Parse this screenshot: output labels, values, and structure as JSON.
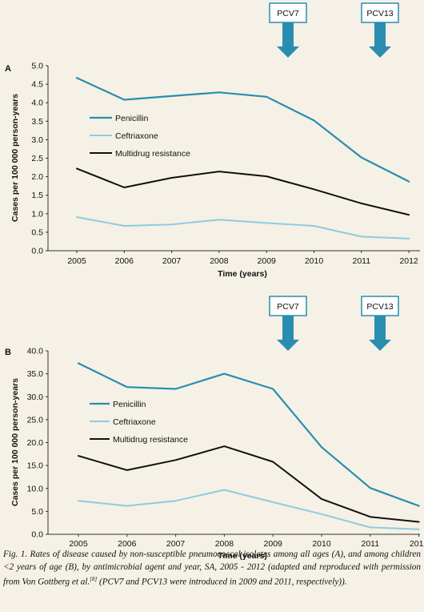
{
  "colors": {
    "penicillin": "#2a8db0",
    "ceftriaxone": "#90cbe0",
    "multidrug": "#111111",
    "arrow": "#2a8db0",
    "axis": "#333333"
  },
  "chart_data": [
    {
      "type": "line",
      "panel_label": "A",
      "xlabel": "Time (years)",
      "ylabel": "Cases per 100 000 person-years",
      "ylim": [
        0,
        5
      ],
      "yticks": [
        "0.0",
        "0.5",
        "1.0",
        "1.5",
        "2.0",
        "2.5",
        "3.0",
        "3.5",
        "4.0",
        "4.5",
        "5.0"
      ],
      "x": [
        "2005",
        "2006",
        "2007",
        "2008",
        "2009",
        "2010",
        "2011",
        "2012"
      ],
      "series": [
        {
          "name": "Penicillin",
          "values": [
            4.67,
            4.08,
            4.18,
            4.28,
            4.16,
            3.52,
            2.52,
            1.87
          ]
        },
        {
          "name": "Ceftriaxone",
          "values": [
            0.91,
            0.67,
            0.71,
            0.84,
            0.75,
            0.67,
            0.38,
            0.33
          ]
        },
        {
          "name": "Multidrug resistance",
          "values": [
            2.22,
            1.71,
            1.97,
            2.14,
            2.01,
            1.66,
            1.28,
            0.97
          ]
        }
      ],
      "annotations": [
        {
          "label": "PCV7",
          "year": "2009"
        },
        {
          "label": "PCV13",
          "year": "2011"
        }
      ],
      "grid": false,
      "legend_position": "top-left"
    },
    {
      "type": "line",
      "panel_label": "B",
      "xlabel": "Time (years)",
      "ylabel": "Cases per 100 000 person-years",
      "ylim": [
        0,
        40
      ],
      "yticks": [
        "0.0",
        "5.0",
        "10.0",
        "15.0",
        "20.0",
        "25.0",
        "30.0",
        "35.0",
        "40.0"
      ],
      "x": [
        "2005",
        "2006",
        "2007",
        "2008",
        "2009",
        "2010",
        "2011",
        "2012"
      ],
      "series": [
        {
          "name": "Penicillin",
          "values": [
            37.3,
            32.1,
            31.7,
            35.0,
            31.7,
            19.0,
            10.1,
            6.2
          ]
        },
        {
          "name": "Ceftriaxone",
          "values": [
            7.3,
            6.2,
            7.3,
            9.7,
            7.0,
            4.4,
            1.5,
            1.1
          ]
        },
        {
          "name": "Multidrug resistance",
          "values": [
            17.1,
            14.0,
            16.2,
            19.2,
            15.8,
            7.7,
            3.8,
            2.7
          ]
        }
      ],
      "annotations": [
        {
          "label": "PCV7",
          "year": "2009"
        },
        {
          "label": "PCV13",
          "year": "2011"
        }
      ],
      "grid": false,
      "legend_position": "top-left"
    }
  ],
  "caption": {
    "main": "Fig. 1. Rates of disease caused by non-susceptible pneumococcal isolates among all ages (A), and among children <2 years of age (B), by antimicrobial agent and year, SA, 2005 - 2012 (adapted and reproduced with permission from Von Gottberg et al.",
    "ref": "[8]",
    "tail": " (PCV7 and PCV13 were introduced in 2009 and 2011, respectively))."
  }
}
